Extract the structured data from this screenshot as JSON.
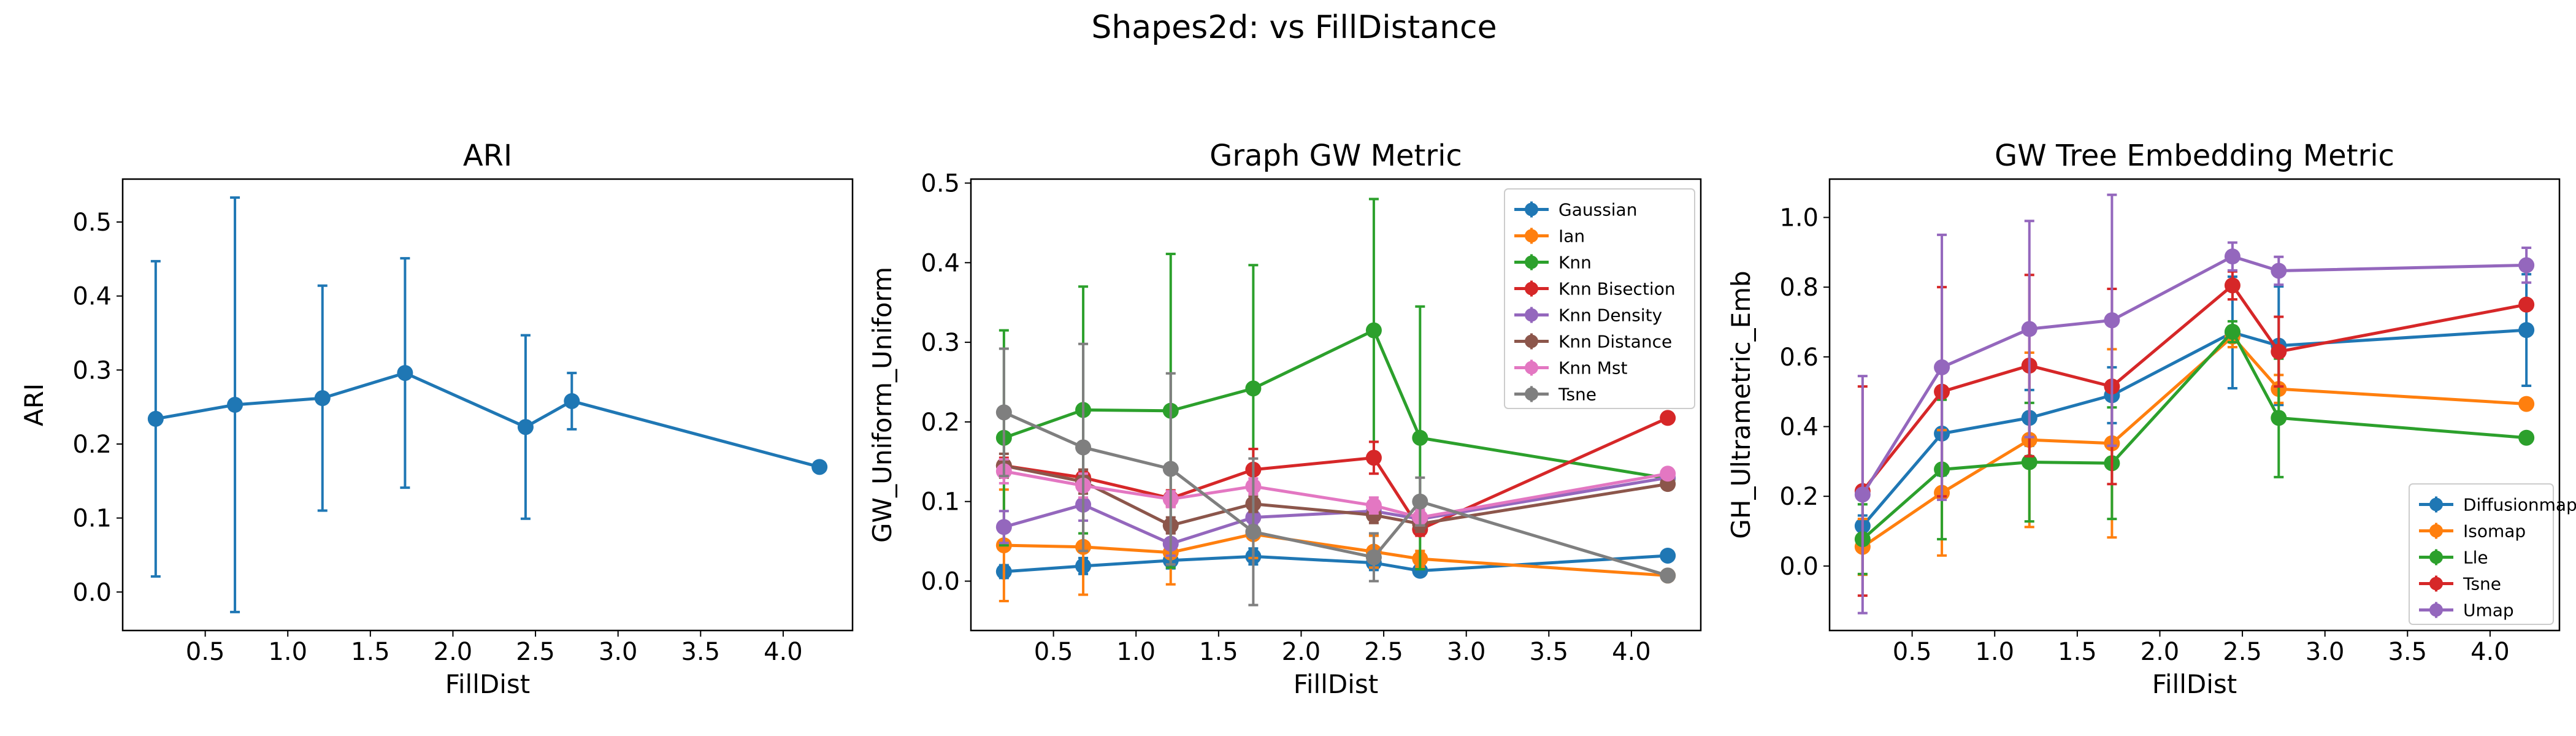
{
  "figure": {
    "title": "Shapes2d: vs FillDistance"
  },
  "chart_data": [
    {
      "type": "line",
      "title": "ARI",
      "xlabel": "FillDist",
      "ylabel": "ARI",
      "xlim": [
        0.0,
        4.42
      ],
      "ylim": [
        -0.052,
        0.558
      ],
      "xticks": [
        0.5,
        1.0,
        1.5,
        2.0,
        2.5,
        3.0,
        3.5,
        4.0
      ],
      "xtick_labels": [
        "0.5",
        "1.0",
        "1.5",
        "2.0",
        "2.5",
        "3.0",
        "3.5",
        "4.0"
      ],
      "yticks": [
        0.0,
        0.1,
        0.2,
        0.3,
        0.4,
        0.5
      ],
      "ytick_labels": [
        "0.0",
        "0.1",
        "0.2",
        "0.3",
        "0.4",
        "0.5"
      ],
      "x": [
        0.2,
        0.68,
        1.21,
        1.71,
        2.44,
        2.72,
        4.22
      ],
      "grid": false,
      "legend": null,
      "series": [
        {
          "color": "#1f77b4",
          "values": [
            0.234,
            0.253,
            0.262,
            0.296,
            0.223,
            0.258,
            0.169
          ],
          "err": [
            0.213,
            0.28,
            0.152,
            0.155,
            0.124,
            0.038,
            0
          ]
        }
      ]
    },
    {
      "type": "line",
      "title": "Graph GW Metric",
      "xlabel": "FillDist",
      "ylabel": "GW_Uniform_Uniform",
      "xlim": [
        0.0,
        4.42
      ],
      "ylim": [
        -0.062,
        0.505
      ],
      "xticks": [
        0.5,
        1.0,
        1.5,
        2.0,
        2.5,
        3.0,
        3.5,
        4.0
      ],
      "xtick_labels": [
        "0.5",
        "1.0",
        "1.5",
        "2.0",
        "2.5",
        "3.0",
        "3.5",
        "4.0"
      ],
      "yticks": [
        0.0,
        0.1,
        0.2,
        0.3,
        0.4,
        0.5
      ],
      "ytick_labels": [
        "0.0",
        "0.1",
        "0.2",
        "0.3",
        "0.4",
        "0.5"
      ],
      "x": [
        0.2,
        0.68,
        1.21,
        1.71,
        2.44,
        2.72,
        4.22
      ],
      "grid": false,
      "legend": "top-right",
      "series": [
        {
          "name": "Gaussian",
          "color": "#1f77b4",
          "values": [
            0.012,
            0.019,
            0.026,
            0.031,
            0.023,
            0.013,
            0.032
          ],
          "err": [
            0.008,
            0.01,
            0.01,
            0.01,
            0.009,
            0.004,
            0
          ]
        },
        {
          "name": "Ian",
          "color": "#ff7f0e",
          "values": [
            0.045,
            0.043,
            0.036,
            0.059,
            0.037,
            0.028,
            0.007
          ],
          "err": [
            0.07,
            0.06,
            0.04,
            0.03,
            0.02,
            0.01,
            0
          ]
        },
        {
          "name": "Knn",
          "color": "#2ca02c",
          "values": [
            0.18,
            0.215,
            0.214,
            0.242,
            0.315,
            0.18,
            0.129
          ],
          "err": [
            0.135,
            0.155,
            0.197,
            0.155,
            0.165,
            0.165,
            0
          ]
        },
        {
          "name": "Knn Bisection",
          "color": "#d62728",
          "values": [
            0.145,
            0.13,
            0.104,
            0.14,
            0.155,
            0.065,
            0.205
          ],
          "err": [
            0.01,
            0.01,
            0.01,
            0.026,
            0.02,
            0.008,
            0
          ]
        },
        {
          "name": "Knn Density",
          "color": "#9467bd",
          "values": [
            0.068,
            0.096,
            0.047,
            0.08,
            0.088,
            0.078,
            0.13
          ],
          "err": [
            0.02,
            0.02,
            0.015,
            0.01,
            0.01,
            0.01,
            0
          ]
        },
        {
          "name": "Knn Distance",
          "color": "#8c564b",
          "values": [
            0.145,
            0.125,
            0.07,
            0.097,
            0.083,
            0.072,
            0.122
          ],
          "err": [
            0.015,
            0.015,
            0.01,
            0.01,
            0.01,
            0.01,
            0
          ]
        },
        {
          "name": "Knn Mst",
          "color": "#e377c2",
          "values": [
            0.138,
            0.12,
            0.103,
            0.119,
            0.095,
            0.08,
            0.135
          ],
          "err": [
            0.015,
            0.015,
            0.01,
            0.01,
            0.01,
            0.01,
            0
          ]
        },
        {
          "name": "Tsne",
          "color": "#7f7f7f",
          "values": [
            0.212,
            0.168,
            0.141,
            0.062,
            0.03,
            0.1,
            0.007
          ],
          "err": [
            0.08,
            0.13,
            0.12,
            0.092,
            0.03,
            0.03,
            0
          ]
        }
      ]
    },
    {
      "type": "line",
      "title": "GW Tree Embedding Metric",
      "xlabel": "FillDist",
      "ylabel": "GH_Ultrametric_Emb",
      "xlim": [
        0.0,
        4.42
      ],
      "ylim": [
        -0.185,
        1.11
      ],
      "xticks": [
        0.5,
        1.0,
        1.5,
        2.0,
        2.5,
        3.0,
        3.5,
        4.0
      ],
      "xtick_labels": [
        "0.5",
        "1.0",
        "1.5",
        "2.0",
        "2.5",
        "3.0",
        "3.5",
        "4.0"
      ],
      "yticks": [
        0.0,
        0.2,
        0.4,
        0.6,
        0.8,
        1.0
      ],
      "ytick_labels": [
        "0.0",
        "0.2",
        "0.4",
        "0.6",
        "0.8",
        "1.0"
      ],
      "x": [
        0.2,
        0.68,
        1.21,
        1.71,
        2.44,
        2.72,
        4.22
      ],
      "grid": false,
      "legend": "bottom-right",
      "series": [
        {
          "name": "Diffusionmap",
          "color": "#1f77b4",
          "values": [
            0.115,
            0.38,
            0.425,
            0.49,
            0.67,
            0.632,
            0.677
          ],
          "err": [
            0.03,
            0.12,
            0.08,
            0.08,
            0.16,
            0.17,
            0.16
          ]
        },
        {
          "name": "Isomap",
          "color": "#ff7f0e",
          "values": [
            0.055,
            0.21,
            0.362,
            0.352,
            0.658,
            0.508,
            0.465
          ],
          "err": [
            0.08,
            0.18,
            0.25,
            0.27,
            0.03,
            0.04,
            0
          ]
        },
        {
          "name": "Lle",
          "color": "#2ca02c",
          "values": [
            0.077,
            0.277,
            0.298,
            0.295,
            0.672,
            0.425,
            0.368
          ],
          "err": [
            0.1,
            0.2,
            0.17,
            0.16,
            0.03,
            0.17,
            0
          ]
        },
        {
          "name": "Tsne",
          "color": "#d62728",
          "values": [
            0.215,
            0.5,
            0.575,
            0.515,
            0.805,
            0.615,
            0.75
          ],
          "err": [
            0.3,
            0.3,
            0.26,
            0.28,
            0.04,
            0.1,
            0
          ]
        },
        {
          "name": "Umap",
          "color": "#9467bd",
          "values": [
            0.205,
            0.57,
            0.68,
            0.705,
            0.888,
            0.847,
            0.863
          ],
          "err": [
            0.34,
            0.38,
            0.31,
            0.36,
            0.04,
            0.04,
            0.05
          ]
        }
      ]
    }
  ]
}
